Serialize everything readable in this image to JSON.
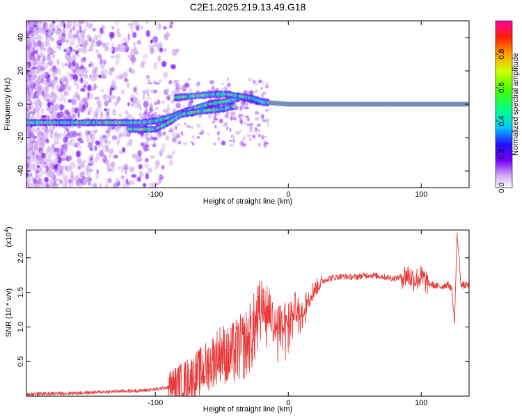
{
  "figure": {
    "title": "C2E1.2025.219.13.49.G18"
  },
  "chart_data": [
    {
      "type": "heatmap",
      "title": "C2E1.2025.219.13.49.G18",
      "xlabel": "Height of straight line (km)",
      "ylabel": "Frequency (Hz)",
      "xlim": [
        -197,
        136
      ],
      "ylim": [
        -50,
        50
      ],
      "x_ticks": [
        -100,
        0,
        100
      ],
      "y_ticks": [
        -40,
        -20,
        0,
        20,
        40
      ],
      "colorbar": {
        "label": "Normalized spectral amplitude",
        "range": [
          0,
          1
        ],
        "ticks": [
          "0.0",
          "0.2",
          "0.4",
          "0.6",
          "0.8"
        ],
        "tick_values": [
          0,
          0.2,
          0.4,
          0.6,
          0.8
        ]
      },
      "ridges": [
        {
          "points": [
            [
              -197,
              -11
            ],
            [
              -110,
              -11
            ],
            [
              -100,
              -10
            ],
            [
              -90,
              -8
            ],
            [
              -80,
              -5
            ],
            [
              -60,
              0
            ],
            [
              -45,
              2
            ],
            [
              -35,
              4
            ],
            [
              -25,
              2
            ],
            [
              -15,
              1
            ],
            [
              0,
              0
            ],
            [
              20,
              0
            ],
            [
              100,
              0
            ],
            [
              136,
              0
            ]
          ]
        },
        {
          "points": [
            [
              -120,
              -15
            ],
            [
              -100,
              -15
            ],
            [
              -90,
              -11
            ],
            [
              -80,
              -6
            ],
            [
              -65,
              -4
            ],
            [
              -50,
              -3
            ],
            [
              -40,
              -1
            ]
          ]
        },
        {
          "points": [
            [
              -85,
              4
            ],
            [
              -70,
              5
            ],
            [
              -55,
              6
            ],
            [
              -45,
              6
            ],
            [
              -38,
              5
            ],
            [
              -30,
              4
            ],
            [
              -25,
              3
            ],
            [
              -18,
              1
            ]
          ]
        }
      ]
    },
    {
      "type": "line",
      "xlabel": "Height of straight line (km)",
      "ylabel": "SNR (10 * v/v)",
      "yscale_label": "(x10",
      "yscale_exp": "4",
      "yscale_close": ")",
      "xlim": [
        -197,
        136
      ],
      "ylim": [
        0,
        24000
      ],
      "x_ticks": [
        -100,
        0,
        100
      ],
      "y_ticks": [
        5000,
        10000,
        15000,
        20000
      ],
      "y_tick_labels": [
        "0.5",
        "1.0",
        "1.5",
        "2.0"
      ],
      "color": "#e83a3a",
      "series": [
        {
          "x": [
            -197,
            -170,
            -150,
            -130,
            -110,
            -100,
            -90,
            -80,
            -70,
            -60,
            -55,
            -50,
            -45,
            -40,
            -35,
            -30,
            -25,
            -20,
            -15,
            -10,
            -5,
            0,
            5,
            10,
            15,
            20,
            25,
            30,
            40,
            50,
            60,
            70,
            80,
            90,
            95,
            100,
            105,
            110,
            115,
            120,
            123,
            125,
            127,
            130,
            136
          ],
          "y": [
            300,
            400,
            500,
            700,
            800,
            1000,
            1300,
            2000,
            3000,
            4500,
            5500,
            6500,
            5500,
            6500,
            7000,
            8000,
            10000,
            12000,
            13000,
            10000,
            11000,
            11500,
            13000,
            12000,
            14500,
            15500,
            16500,
            17000,
            17300,
            17200,
            17500,
            17300,
            17000,
            17500,
            16800,
            17200,
            16300,
            16000,
            15800,
            16200,
            15500,
            10500,
            23500,
            16000,
            16000
          ]
        }
      ]
    }
  ]
}
